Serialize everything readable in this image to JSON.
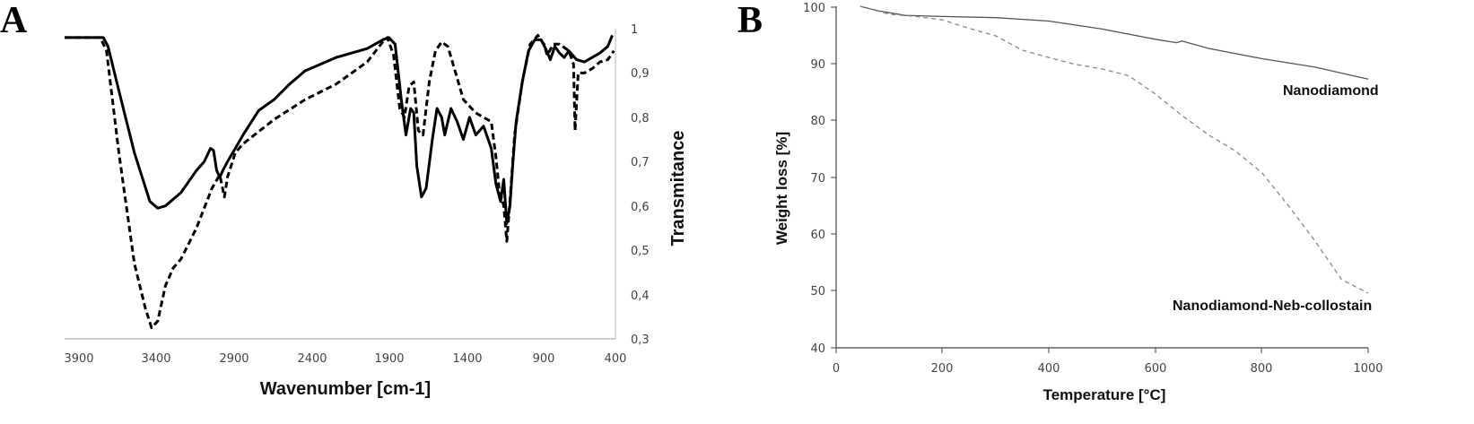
{
  "chart_data": [
    {
      "panel": "A",
      "type": "line",
      "xlabel": "Wavenumber [cm-1]",
      "ylabel": "Transmitance",
      "xlim": [
        3950,
        400
      ],
      "ylim": [
        0.3,
        1.0
      ],
      "x_ticks": [
        "3900",
        "3400",
        "2900",
        "2400",
        "1900",
        "1400",
        "900",
        "400"
      ],
      "y_ticks": [
        "0,3",
        "0,4",
        "0,5",
        "0,6",
        "0,7",
        "0,8",
        "0,9",
        "1"
      ],
      "series": [
        {
          "style": "solid",
          "color": "#000000",
          "points": [
            [
              3950,
              0.98
            ],
            [
              3830,
              0.98
            ],
            [
              3700,
              0.98
            ],
            [
              3670,
              0.96
            ],
            [
              3600,
              0.86
            ],
            [
              3500,
              0.72
            ],
            [
              3400,
              0.61
            ],
            [
              3350,
              0.595
            ],
            [
              3300,
              0.6
            ],
            [
              3200,
              0.63
            ],
            [
              3100,
              0.68
            ],
            [
              3050,
              0.7
            ],
            [
              3010,
              0.73
            ],
            [
              2990,
              0.725
            ],
            [
              2970,
              0.68
            ],
            [
              2950,
              0.665
            ],
            [
              2930,
              0.68
            ],
            [
              2900,
              0.7
            ],
            [
              2850,
              0.73
            ],
            [
              2800,
              0.76
            ],
            [
              2700,
              0.815
            ],
            [
              2600,
              0.84
            ],
            [
              2500,
              0.875
            ],
            [
              2400,
              0.905
            ],
            [
              2200,
              0.935
            ],
            [
              2000,
              0.955
            ],
            [
              1900,
              0.975
            ],
            [
              1860,
              0.98
            ],
            [
              1820,
              0.965
            ],
            [
              1780,
              0.84
            ],
            [
              1750,
              0.76
            ],
            [
              1720,
              0.82
            ],
            [
              1700,
              0.81
            ],
            [
              1680,
              0.69
            ],
            [
              1650,
              0.62
            ],
            [
              1620,
              0.64
            ],
            [
              1580,
              0.75
            ],
            [
              1550,
              0.82
            ],
            [
              1520,
              0.8
            ],
            [
              1500,
              0.76
            ],
            [
              1460,
              0.82
            ],
            [
              1420,
              0.79
            ],
            [
              1380,
              0.75
            ],
            [
              1340,
              0.8
            ],
            [
              1300,
              0.76
            ],
            [
              1250,
              0.78
            ],
            [
              1200,
              0.73
            ],
            [
              1170,
              0.65
            ],
            [
              1140,
              0.61
            ],
            [
              1120,
              0.66
            ],
            [
              1100,
              0.56
            ],
            [
              1080,
              0.6
            ],
            [
              1060,
              0.7
            ],
            [
              1040,
              0.79
            ],
            [
              1000,
              0.88
            ],
            [
              960,
              0.95
            ],
            [
              920,
              0.975
            ],
            [
              880,
              0.975
            ],
            [
              850,
              0.955
            ],
            [
              820,
              0.93
            ],
            [
              790,
              0.96
            ],
            [
              760,
              0.945
            ],
            [
              730,
              0.935
            ],
            [
              700,
              0.95
            ],
            [
              650,
              0.93
            ],
            [
              600,
              0.925
            ],
            [
              550,
              0.935
            ],
            [
              500,
              0.945
            ],
            [
              450,
              0.96
            ],
            [
              420,
              0.985
            ]
          ]
        },
        {
          "style": "dashed",
          "color": "#000000",
          "points": [
            [
              3950,
              0.98
            ],
            [
              3830,
              0.98
            ],
            [
              3720,
              0.98
            ],
            [
              3680,
              0.95
            ],
            [
              3600,
              0.72
            ],
            [
              3500,
              0.47
            ],
            [
              3430,
              0.37
            ],
            [
              3390,
              0.325
            ],
            [
              3350,
              0.34
            ],
            [
              3300,
              0.42
            ],
            [
              3250,
              0.46
            ],
            [
              3200,
              0.48
            ],
            [
              3100,
              0.55
            ],
            [
              3000,
              0.64
            ],
            [
              2950,
              0.67
            ],
            [
              2920,
              0.62
            ],
            [
              2900,
              0.665
            ],
            [
              2850,
              0.72
            ],
            [
              2800,
              0.74
            ],
            [
              2600,
              0.795
            ],
            [
              2400,
              0.84
            ],
            [
              2200,
              0.875
            ],
            [
              2000,
              0.925
            ],
            [
              1900,
              0.97
            ],
            [
              1870,
              0.98
            ],
            [
              1830,
              0.94
            ],
            [
              1790,
              0.82
            ],
            [
              1760,
              0.8
            ],
            [
              1730,
              0.87
            ],
            [
              1700,
              0.88
            ],
            [
              1670,
              0.77
            ],
            [
              1640,
              0.76
            ],
            [
              1600,
              0.88
            ],
            [
              1560,
              0.95
            ],
            [
              1520,
              0.97
            ],
            [
              1480,
              0.96
            ],
            [
              1430,
              0.9
            ],
            [
              1380,
              0.84
            ],
            [
              1300,
              0.81
            ],
            [
              1250,
              0.8
            ],
            [
              1200,
              0.79
            ],
            [
              1170,
              0.71
            ],
            [
              1150,
              0.64
            ],
            [
              1120,
              0.6
            ],
            [
              1100,
              0.52
            ],
            [
              1080,
              0.61
            ],
            [
              1050,
              0.76
            ],
            [
              1000,
              0.88
            ],
            [
              950,
              0.965
            ],
            [
              900,
              0.985
            ],
            [
              860,
              0.965
            ],
            [
              840,
              0.94
            ],
            [
              800,
              0.965
            ],
            [
              760,
              0.965
            ],
            [
              700,
              0.95
            ],
            [
              670,
              0.92
            ],
            [
              660,
              0.77
            ],
            [
              640,
              0.9
            ],
            [
              600,
              0.9
            ],
            [
              550,
              0.91
            ],
            [
              500,
              0.925
            ],
            [
              450,
              0.93
            ],
            [
              410,
              0.95
            ]
          ]
        }
      ]
    },
    {
      "panel": "B",
      "type": "line",
      "xlabel": "Temperature [°C]",
      "ylabel": "Weight loss [%]",
      "xlim": [
        0,
        1000
      ],
      "ylim": [
        40,
        100
      ],
      "x_ticks": [
        "0",
        "200",
        "400",
        "600",
        "800",
        "1000"
      ],
      "y_ticks": [
        "40",
        "50",
        "60",
        "70",
        "80",
        "90",
        "100"
      ],
      "series": [
        {
          "name": "Nanodiamond",
          "style": "solid",
          "color": "#555555",
          "points": [
            [
              45,
              100
            ],
            [
              80,
              99.2
            ],
            [
              130,
              98.4
            ],
            [
              200,
              98.2
            ],
            [
              300,
              98.0
            ],
            [
              400,
              97.4
            ],
            [
              500,
              96.0
            ],
            [
              600,
              94.2
            ],
            [
              640,
              93.6
            ],
            [
              650,
              93.9
            ],
            [
              700,
              92.6
            ],
            [
              800,
              90.8
            ],
            [
              900,
              89.3
            ],
            [
              1000,
              87.2
            ]
          ]
        },
        {
          "name": "Nanodiamond-Neb-collostain",
          "style": "dashed",
          "color": "#888888",
          "points": [
            [
              45,
              100
            ],
            [
              100,
              98.6
            ],
            [
              150,
              98.2
            ],
            [
              200,
              97.6
            ],
            [
              240,
              96.4
            ],
            [
              300,
              94.8
            ],
            [
              350,
              92.3
            ],
            [
              400,
              91.0
            ],
            [
              450,
              89.8
            ],
            [
              500,
              89.0
            ],
            [
              550,
              87.8
            ],
            [
              600,
              84.6
            ],
            [
              650,
              80.8
            ],
            [
              700,
              77.4
            ],
            [
              750,
              74.6
            ],
            [
              800,
              70.8
            ],
            [
              850,
              65.0
            ],
            [
              900,
              58.8
            ],
            [
              950,
              52.0
            ],
            [
              1000,
              49.6
            ]
          ]
        }
      ]
    }
  ],
  "panelA": {
    "letter": "A",
    "xlabel": "Wavenumber [cm-1]",
    "ylabel": "Transmitance",
    "x_ticks": [
      "3900",
      "3400",
      "2900",
      "2400",
      "1900",
      "1400",
      "900",
      "400"
    ],
    "y_ticks": [
      "0,3",
      "0,4",
      "0,5",
      "0,6",
      "0,7",
      "0,8",
      "0,9",
      "1"
    ]
  },
  "panelB": {
    "letter": "B",
    "xlabel": "Temperature [°C]",
    "ylabel": "Weight loss [%]",
    "x_ticks": [
      "0",
      "200",
      "400",
      "600",
      "800",
      "1000"
    ],
    "y_ticks": [
      "40",
      "50",
      "60",
      "70",
      "80",
      "90",
      "100"
    ],
    "label_solid": "Nanodiamond",
    "label_dashed": "Nanodiamond-Neb-collostain"
  }
}
